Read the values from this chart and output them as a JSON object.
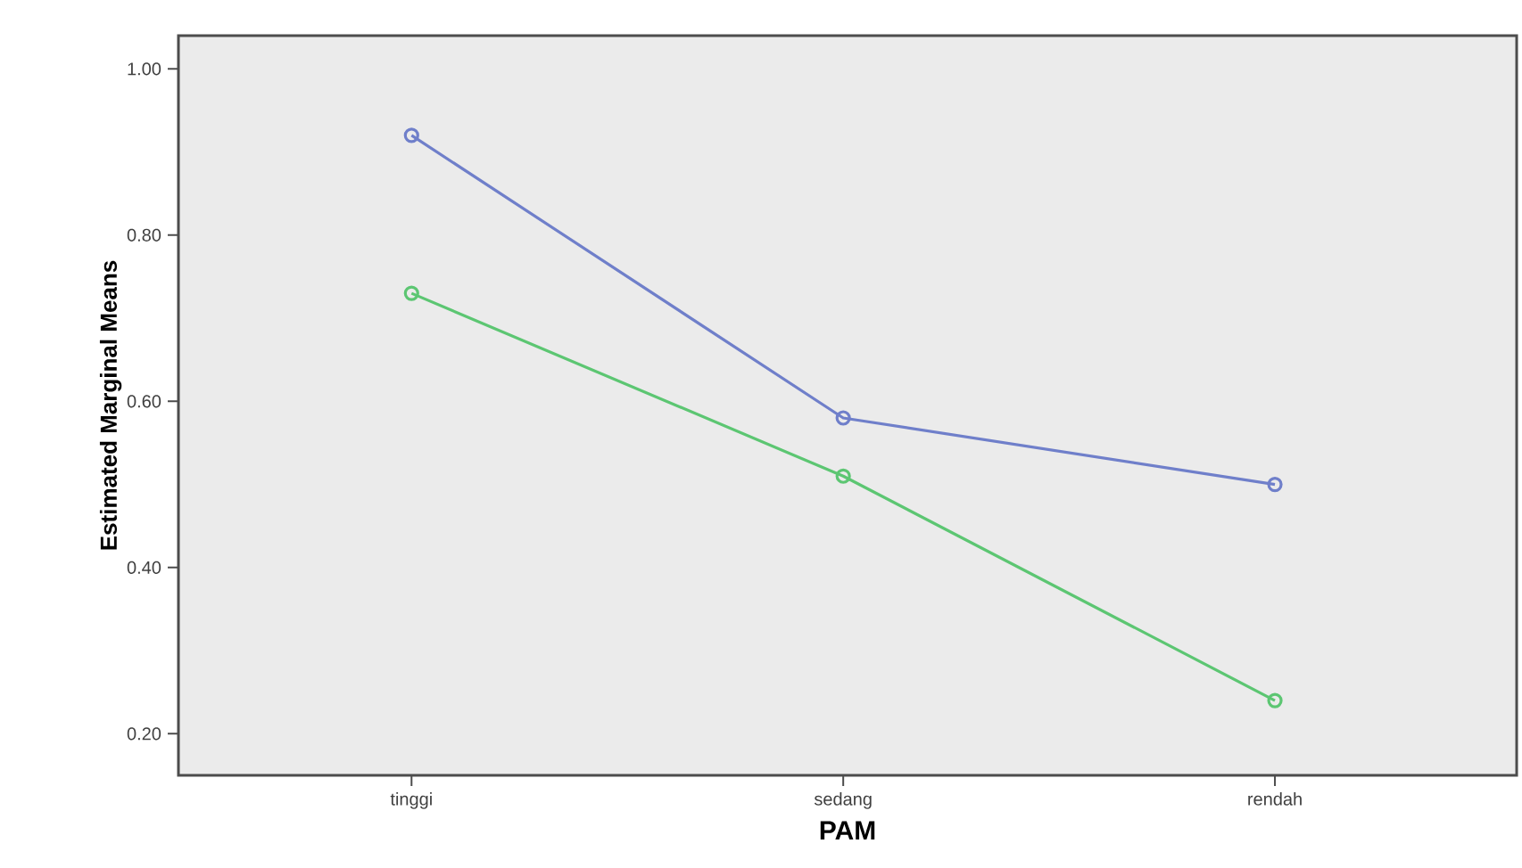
{
  "chart_data": {
    "type": "line",
    "xlabel": "PAM",
    "ylabel": "Estimated Marginal Means",
    "categories": [
      "tinggi",
      "sedang",
      "rendah"
    ],
    "series": [
      {
        "color": "#6f7fca",
        "values": [
          0.92,
          0.58,
          0.5
        ]
      },
      {
        "color": "#5cc672",
        "values": [
          0.73,
          0.51,
          0.24
        ]
      }
    ],
    "ylim": [
      0.15,
      1.04
    ],
    "yticks": [
      {
        "value": 0.2,
        "label": "0.20"
      },
      {
        "value": 0.4,
        "label": "0.40"
      },
      {
        "value": 0.6,
        "label": "0.60"
      },
      {
        "value": 0.8,
        "label": "0.80"
      },
      {
        "value": 1.0,
        "label": "1.00"
      }
    ],
    "marker": "circle",
    "line_style": "solid"
  }
}
